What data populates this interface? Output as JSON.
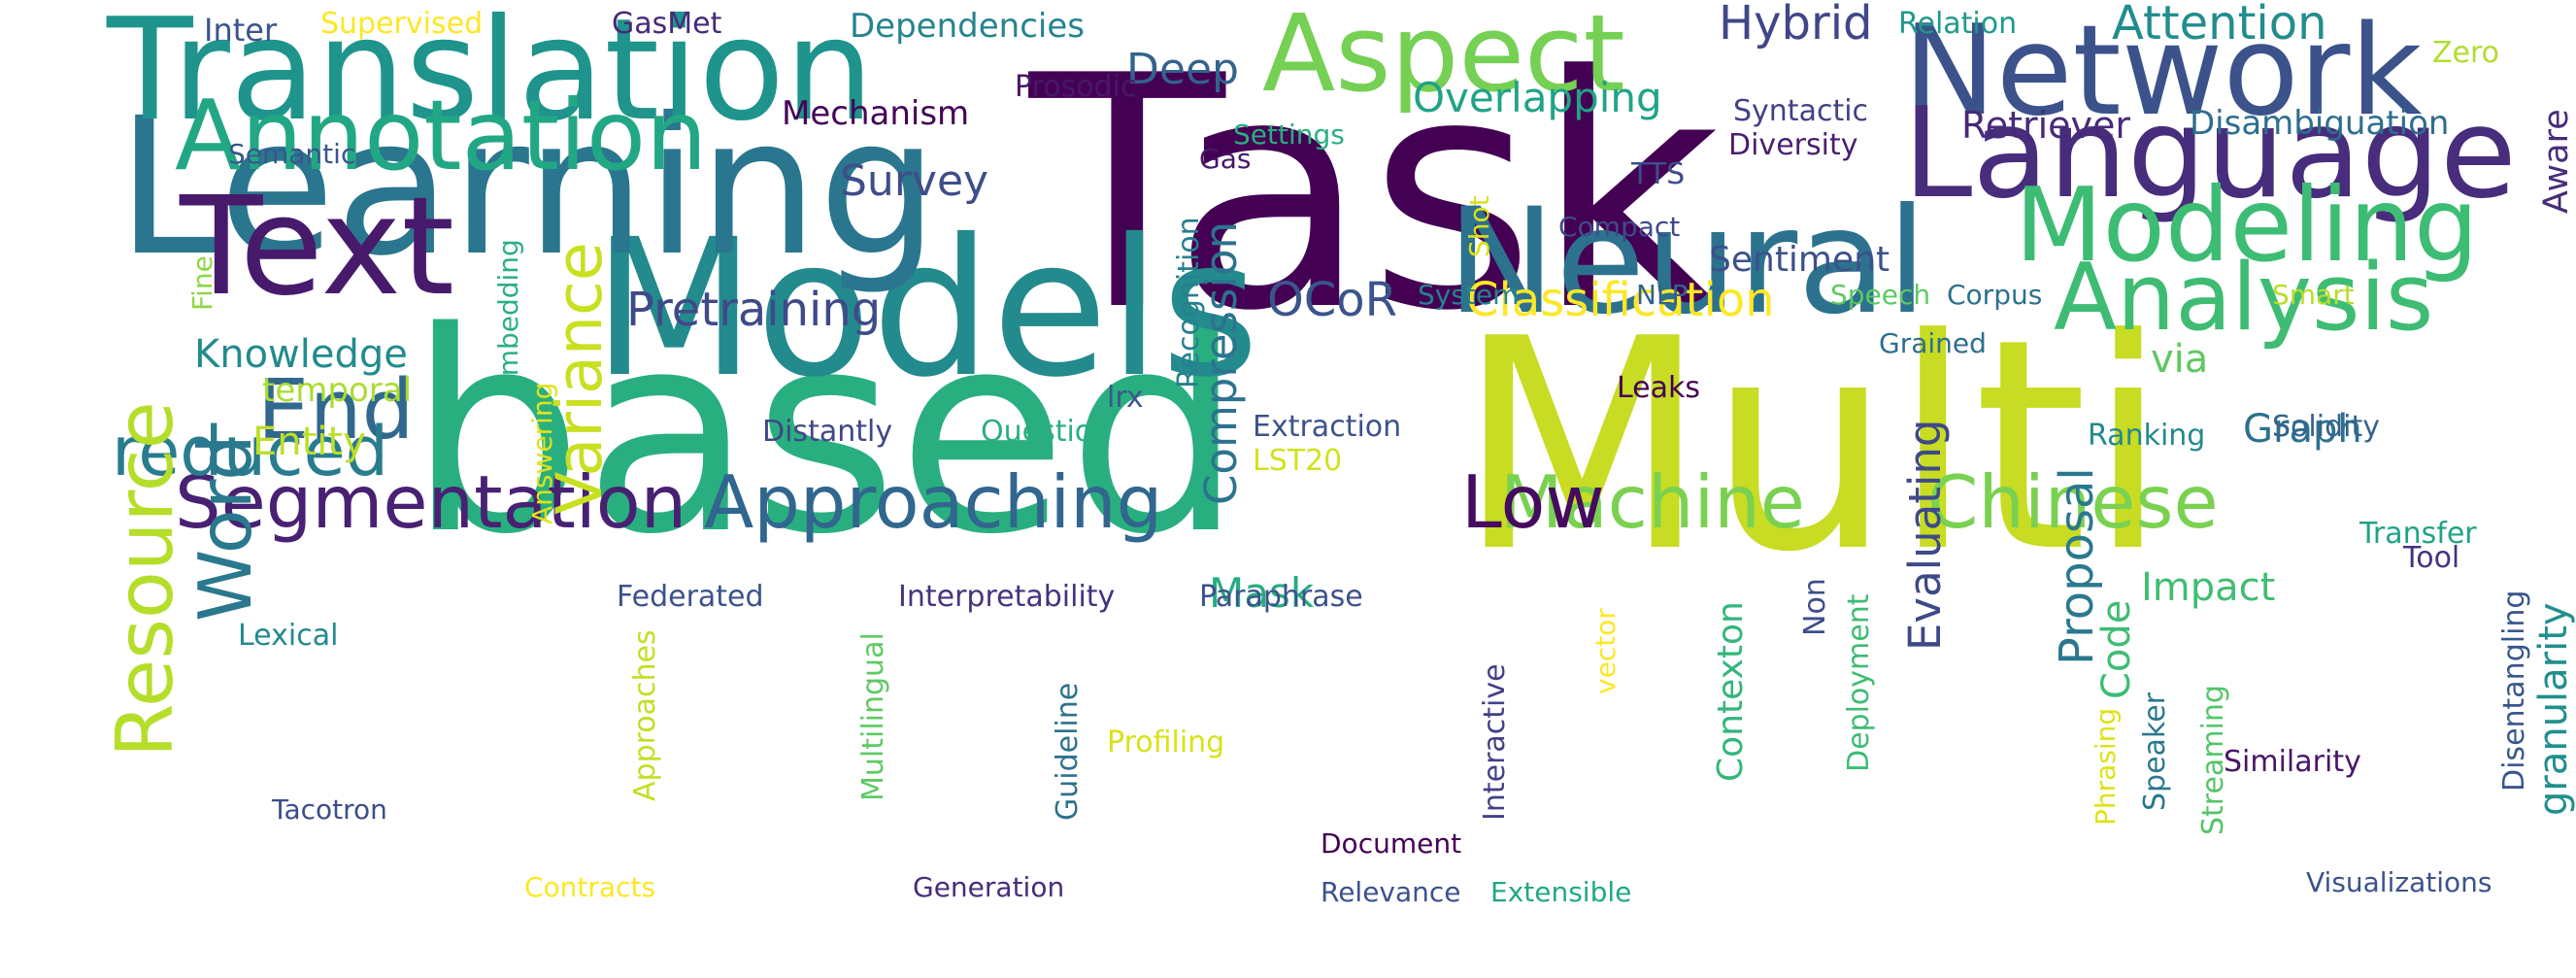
{
  "wordcloud": {
    "colors": {
      "background": "#ffffff",
      "c1": "#440154",
      "c2": "#482475",
      "c3": "#414487",
      "c4": "#355f8d",
      "c5": "#2a788e",
      "c6": "#21918c",
      "c7": "#22a884",
      "c8": "#44bf70",
      "c9": "#7ad151",
      "c10": "#bddf26",
      "c11": "#fde725"
    },
    "words": [
      {
        "id": "task",
        "text": "Task",
        "color": "#440154",
        "rotate": false
      },
      {
        "id": "multi",
        "text": "Multi",
        "color": "#c7dc22",
        "rotate": false
      },
      {
        "id": "based",
        "text": "based",
        "color": "#29af7f",
        "rotate": false
      },
      {
        "id": "models",
        "text": "Models",
        "color": "#238a8d",
        "rotate": false
      },
      {
        "id": "learning",
        "text": "Learning",
        "color": "#2a768e",
        "rotate": false
      },
      {
        "id": "translation",
        "text": "Translation",
        "color": "#1f948c",
        "rotate": false
      },
      {
        "id": "network",
        "text": "Network",
        "color": "#3b528b",
        "rotate": false
      },
      {
        "id": "neural",
        "text": "Neural",
        "color": "#2c728e",
        "rotate": false
      },
      {
        "id": "language",
        "text": "Language",
        "color": "#472d7b",
        "rotate": false
      },
      {
        "id": "aspect",
        "text": "Aspect",
        "color": "#75d054",
        "rotate": false
      },
      {
        "id": "modeling",
        "text": "Modeling",
        "color": "#3dbc74",
        "rotate": false
      },
      {
        "id": "annotation",
        "text": "Annotation",
        "color": "#22a785",
        "rotate": false
      },
      {
        "id": "text",
        "text": "Text",
        "color": "#481a6c",
        "rotate": false
      },
      {
        "id": "analysis",
        "text": "Analysis",
        "color": "#3fbc73",
        "rotate": false
      },
      {
        "id": "machine",
        "text": "Machine",
        "color": "#7ad151",
        "rotate": false
      },
      {
        "id": "chinese",
        "text": "Chinese",
        "color": "#7ad151",
        "rotate": false
      },
      {
        "id": "segmentation",
        "text": "Segmentation",
        "color": "#482173",
        "rotate": false
      },
      {
        "id": "approaching",
        "text": "Approaching",
        "color": "#31668e",
        "rotate": false
      },
      {
        "id": "end",
        "text": "End",
        "color": "#31688e",
        "rotate": false
      },
      {
        "id": "reduced",
        "text": "reduced",
        "color": "#287c8e",
        "rotate": false
      },
      {
        "id": "low",
        "text": "Low",
        "color": "#460b5e",
        "rotate": false
      },
      {
        "id": "variance",
        "text": "Variance",
        "color": "#c8e020",
        "rotate": true
      },
      {
        "id": "resource",
        "text": "Resource",
        "color": "#b5de2b",
        "rotate": true
      },
      {
        "id": "word",
        "text": "Word",
        "color": "#2a788e",
        "rotate": true
      },
      {
        "id": "pretraining",
        "text": "Pretraining",
        "color": "#3e4a89",
        "rotate": false
      },
      {
        "id": "classification",
        "text": "Classification",
        "color": "#fde725",
        "rotate": false
      },
      {
        "id": "compression",
        "text": "Compression",
        "color": "#2c738e",
        "rotate": true
      },
      {
        "id": "ocor",
        "text": "OCoR",
        "color": "#3a548c",
        "rotate": false
      },
      {
        "id": "attention",
        "text": "Attention",
        "color": "#228d8d",
        "rotate": false
      },
      {
        "id": "hybrid",
        "text": "Hybrid",
        "color": "#3f4788",
        "rotate": false
      },
      {
        "id": "deep",
        "text": "Deep",
        "color": "#33638d",
        "rotate": false
      },
      {
        "id": "overlapping",
        "text": "Overlapping",
        "color": "#20a386",
        "rotate": false
      },
      {
        "id": "survey",
        "text": "Survey",
        "color": "#3d4e8a",
        "rotate": false
      },
      {
        "id": "knowledge",
        "text": "Knowledge",
        "color": "#228b8d",
        "rotate": false
      },
      {
        "id": "entity",
        "text": "Entity",
        "color": "#bddf26",
        "rotate": false
      },
      {
        "id": "mask",
        "text": "Mask",
        "color": "#25ac82",
        "rotate": false
      },
      {
        "id": "via",
        "text": "via",
        "color": "#5ec962",
        "rotate": false
      },
      {
        "id": "proposal",
        "text": "Proposal",
        "color": "#2a788e",
        "rotate": true
      },
      {
        "id": "evaluating",
        "text": "Evaluating",
        "color": "#3e4989",
        "rotate": true
      },
      {
        "id": "graph",
        "text": "Graph",
        "color": "#2d708e",
        "rotate": false
      },
      {
        "id": "impact",
        "text": "Impact",
        "color": "#40bd72",
        "rotate": false
      },
      {
        "id": "granularity",
        "text": "granularity",
        "color": "#218f8d",
        "rotate": true
      },
      {
        "id": "code",
        "text": "Code",
        "color": "#3dbc74",
        "rotate": true
      },
      {
        "id": "contexton",
        "text": "Contexton",
        "color": "#32b67a",
        "rotate": true
      },
      {
        "id": "sentiment",
        "text": "Sentiment",
        "color": "#3b518b",
        "rotate": false
      },
      {
        "id": "retriever",
        "text": "Retriever",
        "color": "#472a7a",
        "rotate": false
      },
      {
        "id": "disambiguation",
        "text": "Disambiguation",
        "color": "#2e6e8e",
        "rotate": false
      },
      {
        "id": "aware",
        "text": "Aware",
        "color": "#472c7a",
        "rotate": true
      },
      {
        "id": "mechanism",
        "text": "Mechanism",
        "color": "#450457",
        "rotate": false
      },
      {
        "id": "dependencies",
        "text": "Dependencies",
        "color": "#25848e",
        "rotate": false
      },
      {
        "id": "inter",
        "text": "Inter",
        "color": "#3a548c",
        "rotate": false
      },
      {
        "id": "supervised",
        "text": "Supervised",
        "color": "#fde725",
        "rotate": false
      },
      {
        "id": "gasmet",
        "text": "GasMet",
        "color": "#472a7a",
        "rotate": false
      },
      {
        "id": "prosodic",
        "text": "Prosodic",
        "color": "#481769",
        "rotate": false
      },
      {
        "id": "relation",
        "text": "Relation",
        "color": "#1f9a8a",
        "rotate": false
      },
      {
        "id": "zero",
        "text": "Zero",
        "color": "#b0dd2f",
        "rotate": false
      },
      {
        "id": "syntactic",
        "text": "Syntactic",
        "color": "#424086",
        "rotate": false
      },
      {
        "id": "diversity",
        "text": "Diversity",
        "color": "#481f70",
        "rotate": false
      },
      {
        "id": "tts",
        "text": "TTS",
        "color": "#3e4c8a",
        "rotate": false
      },
      {
        "id": "settings",
        "text": "Settings",
        "color": "#29af7f",
        "rotate": false
      },
      {
        "id": "gas",
        "text": "Gas",
        "color": "#481668",
        "rotate": false
      },
      {
        "id": "semantic",
        "text": "Semantic",
        "color": "#39568c",
        "rotate": false
      },
      {
        "id": "recognition",
        "text": "Recognition",
        "color": "#277f8e",
        "rotate": true
      },
      {
        "id": "compact",
        "text": "Compact",
        "color": "#3e4a89",
        "rotate": false
      },
      {
        "id": "shot",
        "text": "Shot",
        "color": "#d8e219",
        "rotate": true
      },
      {
        "id": "system",
        "text": "System",
        "color": "#26828e",
        "rotate": false
      },
      {
        "id": "nlp",
        "text": "NLP",
        "color": "#33638d",
        "rotate": false
      },
      {
        "id": "speech",
        "text": "Speech",
        "color": "#5ec962",
        "rotate": false
      },
      {
        "id": "corpus",
        "text": "Corpus",
        "color": "#2d708e",
        "rotate": false
      },
      {
        "id": "smart",
        "text": "Smart",
        "color": "#b8de29",
        "rotate": false
      },
      {
        "id": "grained",
        "text": "Grained",
        "color": "#2e6e8e",
        "rotate": false
      },
      {
        "id": "fine",
        "text": "Fine",
        "color": "#8fd744",
        "rotate": true
      },
      {
        "id": "embedding",
        "text": "Embedding",
        "color": "#2ab07f",
        "rotate": true
      },
      {
        "id": "temporal",
        "text": "temporal",
        "color": "#aadc32",
        "rotate": false
      },
      {
        "id": "answering",
        "text": "Answering",
        "color": "#dfe318",
        "rotate": true
      },
      {
        "id": "distantly",
        "text": "Distantly",
        "color": "#3f4788",
        "rotate": false
      },
      {
        "id": "question",
        "text": "Question",
        "color": "#29af7f",
        "rotate": false
      },
      {
        "id": "lrx",
        "text": "lrx",
        "color": "#39568c",
        "rotate": false
      },
      {
        "id": "extraction",
        "text": "Extraction",
        "color": "#3b528b",
        "rotate": false
      },
      {
        "id": "lst20",
        "text": "LST20",
        "color": "#d2e21b",
        "rotate": false
      },
      {
        "id": "leaks",
        "text": "Leaks",
        "color": "#440154",
        "rotate": false
      },
      {
        "id": "ranking",
        "text": "Ranking",
        "color": "#23898e",
        "rotate": false
      },
      {
        "id": "solidity",
        "text": "Solidity",
        "color": "#33638d",
        "rotate": false
      },
      {
        "id": "transfer",
        "text": "Transfer",
        "color": "#20a386",
        "rotate": false
      },
      {
        "id": "tool",
        "text": "Tool",
        "color": "#46337f",
        "rotate": false
      },
      {
        "id": "federated",
        "text": "Federated",
        "color": "#3b528b",
        "rotate": false
      },
      {
        "id": "interpretability",
        "text": "Interpretability",
        "color": "#46337f",
        "rotate": false
      },
      {
        "id": "paraphrase",
        "text": "Paraphrase",
        "color": "#3b528b",
        "rotate": false
      },
      {
        "id": "lexical",
        "text": "Lexical",
        "color": "#23898e",
        "rotate": false
      },
      {
        "id": "approaches",
        "text": "Approaches",
        "color": "#c2df23",
        "rotate": true
      },
      {
        "id": "multilingual",
        "text": "Multilingual",
        "color": "#5ec962",
        "rotate": true
      },
      {
        "id": "guideline",
        "text": "Guideline",
        "color": "#2c728e",
        "rotate": true
      },
      {
        "id": "profiling",
        "text": "Profiling",
        "color": "#d8e219",
        "rotate": false
      },
      {
        "id": "interactive",
        "text": "Interactive",
        "color": "#424086",
        "rotate": true
      },
      {
        "id": "vector",
        "text": "vector",
        "color": "#fde725",
        "rotate": true
      },
      {
        "id": "deployment",
        "text": "Deployment",
        "color": "#3dbc74",
        "rotate": true
      },
      {
        "id": "non",
        "text": "Non",
        "color": "#3d4d8a",
        "rotate": true
      },
      {
        "id": "phrasing",
        "text": "Phrasing",
        "color": "#dde318",
        "rotate": true
      },
      {
        "id": "speaker",
        "text": "Speaker",
        "color": "#2a788e",
        "rotate": true
      },
      {
        "id": "streaming",
        "text": "Streaming",
        "color": "#54c568",
        "rotate": true
      },
      {
        "id": "similarity",
        "text": "Similarity",
        "color": "#481668",
        "rotate": false
      },
      {
        "id": "disentangling",
        "text": "Disentangling",
        "color": "#39568c",
        "rotate": true
      },
      {
        "id": "tacotron",
        "text": "Tacotron",
        "color": "#3d4e8a",
        "rotate": false
      },
      {
        "id": "contracts",
        "text": "Contracts",
        "color": "#fde725",
        "rotate": false
      },
      {
        "id": "generation",
        "text": "Generation",
        "color": "#472d7b",
        "rotate": false
      },
      {
        "id": "document",
        "text": "Document",
        "color": "#440154",
        "rotate": false
      },
      {
        "id": "relevance",
        "text": "Relevance",
        "color": "#3b528b",
        "rotate": false
      },
      {
        "id": "extensible",
        "text": "Extensible",
        "color": "#22a884",
        "rotate": false
      },
      {
        "id": "visualizations",
        "text": "Visualizations",
        "color": "#3b528b",
        "rotate": false
      }
    ]
  }
}
